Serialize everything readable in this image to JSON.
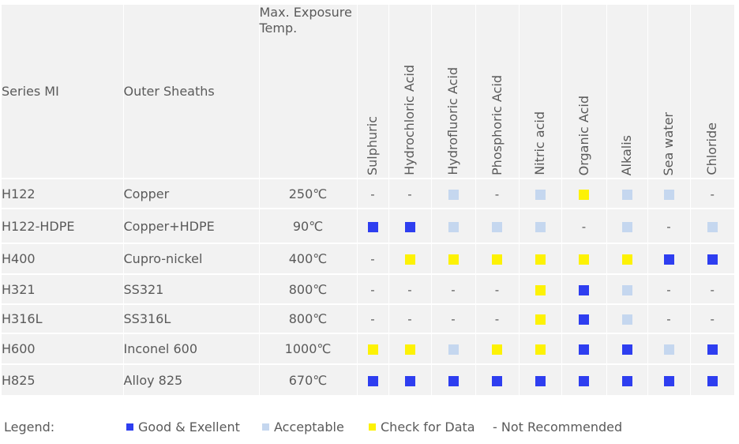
{
  "colors": {
    "good": "#2e3ef0",
    "acceptable": "#c5d7ef",
    "check": "#fdf205"
  },
  "table": {
    "headers": {
      "series": "Series MI",
      "sheath": "Outer Sheaths",
      "temp": "Max. Exposure Temp.",
      "media": [
        "Sulphuric",
        "Hydrochloric Acid",
        "Hydrofluoric Acid",
        "Phosphoric Acid",
        "Nitric acid",
        "Organic Acid",
        "Alkalis",
        "Sea water",
        "Chloride"
      ]
    },
    "rows": [
      {
        "series": "H122",
        "sheath": "Copper",
        "temp": "250℃",
        "ratings": [
          "not",
          "not",
          "acceptable",
          "not",
          "acceptable",
          "check",
          "acceptable",
          "acceptable",
          "not"
        ]
      },
      {
        "series": "H122-HDPE",
        "sheath": "Copper+HDPE",
        "temp": "90℃",
        "ratings": [
          "good",
          "good",
          "acceptable",
          "acceptable",
          "acceptable",
          "not",
          "acceptable",
          "not",
          "acceptable"
        ]
      },
      {
        "series": "H400",
        "sheath": "Cupro-nickel",
        "temp": "400℃",
        "ratings": [
          "not",
          "check",
          "check",
          "check",
          "check",
          "check",
          "check",
          "good",
          "good"
        ]
      },
      {
        "series": "H321",
        "sheath": "SS321",
        "temp": "800℃",
        "ratings": [
          "not",
          "not",
          "not",
          "not",
          "check",
          "good",
          "acceptable",
          "not",
          "not"
        ]
      },
      {
        "series": "H316L",
        "sheath": "SS316L",
        "temp": "800℃",
        "ratings": [
          "not",
          "not",
          "not",
          "not",
          "check",
          "good",
          "acceptable",
          "not",
          "not"
        ]
      },
      {
        "series": "H600",
        "sheath": "Inconel 600",
        "temp": "1000℃",
        "ratings": [
          "check",
          "check",
          "acceptable",
          "check",
          "check",
          "good",
          "good",
          "acceptable",
          "good"
        ]
      },
      {
        "series": "H825",
        "sheath": "Alloy 825",
        "temp": "670℃",
        "ratings": [
          "good",
          "good",
          "good",
          "good",
          "good",
          "good",
          "good",
          "good",
          "good"
        ]
      }
    ]
  },
  "legend": {
    "label": "Legend:",
    "good": "Good & Exellent",
    "acceptable": "Acceptable",
    "check": "Check for Data",
    "not": "- Not Recommended"
  },
  "dash_symbol": "-"
}
